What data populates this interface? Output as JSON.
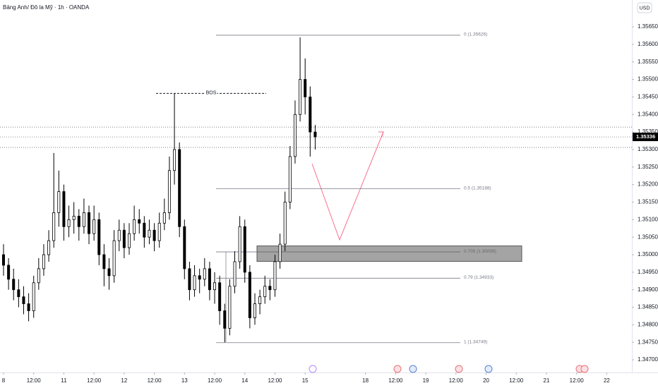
{
  "chart_data": {
    "type": "candlestick",
    "title": "Bảng Anh/ Đô la Mỹ · 1h · OANDA",
    "currency_button": "USD",
    "up_color": "#ffffff",
    "down_color": "#000000",
    "x": [
      0,
      2,
      4,
      6,
      8,
      10,
      12,
      14,
      16,
      18,
      20,
      22,
      24,
      26,
      28,
      30,
      32,
      34,
      36,
      38,
      40,
      42,
      44,
      46,
      48,
      50,
      52,
      54,
      56,
      58,
      60,
      62,
      64,
      66,
      68,
      70,
      72,
      74,
      76,
      78,
      80,
      82,
      84,
      86,
      88,
      90,
      92,
      94,
      96,
      98,
      100,
      102,
      104,
      106,
      108,
      110,
      112,
      114,
      116,
      118,
      120,
      122,
      124
    ],
    "candles": [
      [
        1.35,
        1.3503,
        1.3494,
        1.3497
      ],
      [
        1.3497,
        1.3499,
        1.349,
        1.3493
      ],
      [
        1.3493,
        1.3496,
        1.3487,
        1.349
      ],
      [
        1.349,
        1.3493,
        1.3485,
        1.3488
      ],
      [
        1.3488,
        1.3491,
        1.3483,
        1.3486
      ],
      [
        1.3486,
        1.3489,
        1.3481,
        1.3484
      ],
      [
        1.3484,
        1.3494,
        1.3482,
        1.3492
      ],
      [
        1.3492,
        1.3499,
        1.349,
        1.3496
      ],
      [
        1.3496,
        1.3503,
        1.3494,
        1.35
      ],
      [
        1.35,
        1.3507,
        1.3498,
        1.3504
      ],
      [
        1.3504,
        1.3529,
        1.3502,
        1.3512
      ],
      [
        1.3512,
        1.3524,
        1.3508,
        1.3518
      ],
      [
        1.3518,
        1.352,
        1.3504,
        1.3508
      ],
      [
        1.3508,
        1.3514,
        1.3505,
        1.351
      ],
      [
        1.351,
        1.3515,
        1.3506,
        1.3511
      ],
      [
        1.3511,
        1.3513,
        1.3504,
        1.3508
      ],
      [
        1.3508,
        1.3516,
        1.3506,
        1.3512
      ],
      [
        1.3512,
        1.3514,
        1.3503,
        1.3506
      ],
      [
        1.3506,
        1.3514,
        1.3504,
        1.351
      ],
      [
        1.351,
        1.3512,
        1.3497,
        1.35
      ],
      [
        1.35,
        1.3503,
        1.3491,
        1.3496
      ],
      [
        1.3496,
        1.3499,
        1.349,
        1.3494
      ],
      [
        1.3494,
        1.3507,
        1.3492,
        1.3504
      ],
      [
        1.3504,
        1.351,
        1.3501,
        1.3507
      ],
      [
        1.3507,
        1.3509,
        1.3499,
        1.3502
      ],
      [
        1.3502,
        1.3509,
        1.35,
        1.3506
      ],
      [
        1.3506,
        1.3514,
        1.3504,
        1.351
      ],
      [
        1.351,
        1.3513,
        1.3506,
        1.3509
      ],
      [
        1.3509,
        1.3511,
        1.3502,
        1.3505
      ],
      [
        1.3505,
        1.351,
        1.3503,
        1.3507
      ],
      [
        1.3507,
        1.3509,
        1.3501,
        1.3504
      ],
      [
        1.3504,
        1.3512,
        1.3502,
        1.3509
      ],
      [
        1.3509,
        1.3516,
        1.3507,
        1.3512
      ],
      [
        1.3512,
        1.3528,
        1.351,
        1.3524
      ],
      [
        1.3524,
        1.3546,
        1.352,
        1.353
      ],
      [
        1.353,
        1.3532,
        1.3505,
        1.3508
      ],
      [
        1.3508,
        1.351,
        1.3493,
        1.3496
      ],
      [
        1.3496,
        1.3498,
        1.3487,
        1.349
      ],
      [
        1.349,
        1.3497,
        1.3488,
        1.3494
      ],
      [
        1.3494,
        1.3496,
        1.3489,
        1.3493
      ],
      [
        1.3493,
        1.3499,
        1.3491,
        1.3496
      ],
      [
        1.3496,
        1.3498,
        1.3487,
        1.349
      ],
      [
        1.349,
        1.3495,
        1.3486,
        1.3492
      ],
      [
        1.3492,
        1.3494,
        1.348,
        1.3484
      ],
      [
        1.3484,
        1.3486,
        1.3475,
        1.3479
      ],
      [
        1.3479,
        1.3493,
        1.3477,
        1.3491
      ],
      [
        1.3491,
        1.3501,
        1.3489,
        1.3498
      ],
      [
        1.3498,
        1.3511,
        1.3496,
        1.3508
      ],
      [
        1.3508,
        1.351,
        1.3492,
        1.3495
      ],
      [
        1.3495,
        1.3497,
        1.3479,
        1.3482
      ],
      [
        1.3482,
        1.3489,
        1.348,
        1.3486
      ],
      [
        1.3486,
        1.349,
        1.3483,
        1.3488
      ],
      [
        1.3488,
        1.3494,
        1.3486,
        1.3491
      ],
      [
        1.3491,
        1.3493,
        1.3487,
        1.349
      ],
      [
        1.349,
        1.35,
        1.3488,
        1.3498
      ],
      [
        1.3498,
        1.3506,
        1.3496,
        1.3503
      ],
      [
        1.3503,
        1.3518,
        1.3501,
        1.3515
      ],
      [
        1.3515,
        1.3531,
        1.3513,
        1.3528
      ],
      [
        1.3528,
        1.3544,
        1.3526,
        1.354
      ],
      [
        1.354,
        1.3562,
        1.3538,
        1.355
      ],
      [
        1.355,
        1.3556,
        1.354,
        1.3545
      ],
      [
        1.3545,
        1.3548,
        1.3528,
        1.3535
      ],
      [
        1.3535,
        1.3537,
        1.353,
        1.35336
      ]
    ],
    "xlim": [
      -1.4,
      250
    ],
    "xticks": [
      {
        "value": 0,
        "label": "8"
      },
      {
        "value": 12,
        "label": "12:00"
      },
      {
        "value": 24,
        "label": "11"
      },
      {
        "value": 36,
        "label": "12:00"
      },
      {
        "value": 48,
        "label": "12"
      },
      {
        "value": 60,
        "label": "12:00"
      },
      {
        "value": 72,
        "label": "13"
      },
      {
        "value": 84,
        "label": "12:00"
      },
      {
        "value": 96,
        "label": "14"
      },
      {
        "value": 108,
        "label": "12:00"
      },
      {
        "value": 120,
        "label": "15"
      },
      {
        "value": 144,
        "label": "18"
      },
      {
        "value": 156,
        "label": "12:00"
      },
      {
        "value": 168,
        "label": "19"
      },
      {
        "value": 180,
        "label": "12:00"
      },
      {
        "value": 192,
        "label": "20"
      },
      {
        "value": 204,
        "label": "12:00"
      },
      {
        "value": 216,
        "label": "21"
      },
      {
        "value": 228,
        "label": "12:00"
      },
      {
        "value": 240,
        "label": "22"
      }
    ],
    "ylim": [
      1.34664,
      1.357265
    ],
    "yticks": [
      {
        "value": 1.3565,
        "label": "1.35650"
      },
      {
        "value": 1.356,
        "label": "1.35600"
      },
      {
        "value": 1.3555,
        "label": "1.35550"
      },
      {
        "value": 1.355,
        "label": "1.35500"
      },
      {
        "value": 1.3545,
        "label": "1.35450"
      },
      {
        "value": 1.354,
        "label": "1.35400"
      },
      {
        "value": 1.3535,
        "label": "1.35350"
      },
      {
        "value": 1.353,
        "label": "1.35300"
      },
      {
        "value": 1.3525,
        "label": "1.35250"
      },
      {
        "value": 1.352,
        "label": "1.35200"
      },
      {
        "value": 1.3515,
        "label": "1.35150"
      },
      {
        "value": 1.351,
        "label": "1.35100"
      },
      {
        "value": 1.3505,
        "label": "1.35050"
      },
      {
        "value": 1.35,
        "label": "1.35000"
      },
      {
        "value": 1.3495,
        "label": "1.34950"
      },
      {
        "value": 1.349,
        "label": "1.34900"
      },
      {
        "value": 1.3485,
        "label": "1.34850"
      },
      {
        "value": 1.348,
        "label": "1.34800"
      },
      {
        "value": 1.3475,
        "label": "1.34750"
      },
      {
        "value": 1.347,
        "label": "1.34700"
      }
    ],
    "last_price": 1.35336,
    "price_lines": [
      1.35364,
      1.35336,
      1.35306
    ],
    "bos": {
      "label": "BOS",
      "price": 1.3546
    },
    "fib_levels": [
      {
        "label": "0 (1.35626)",
        "price": 1.35626
      },
      {
        "label": "0.5 (1.35188)",
        "price": 1.35188
      },
      {
        "label": "0.705 (1.35008)",
        "price": 1.35008
      },
      {
        "label": "0.79 (1.34933)",
        "price": 1.34933
      },
      {
        "label": "1 (1.34749)",
        "price": 1.34749
      }
    ],
    "zone": {
      "top": 1.35025,
      "bottom": 1.34981
    }
  }
}
